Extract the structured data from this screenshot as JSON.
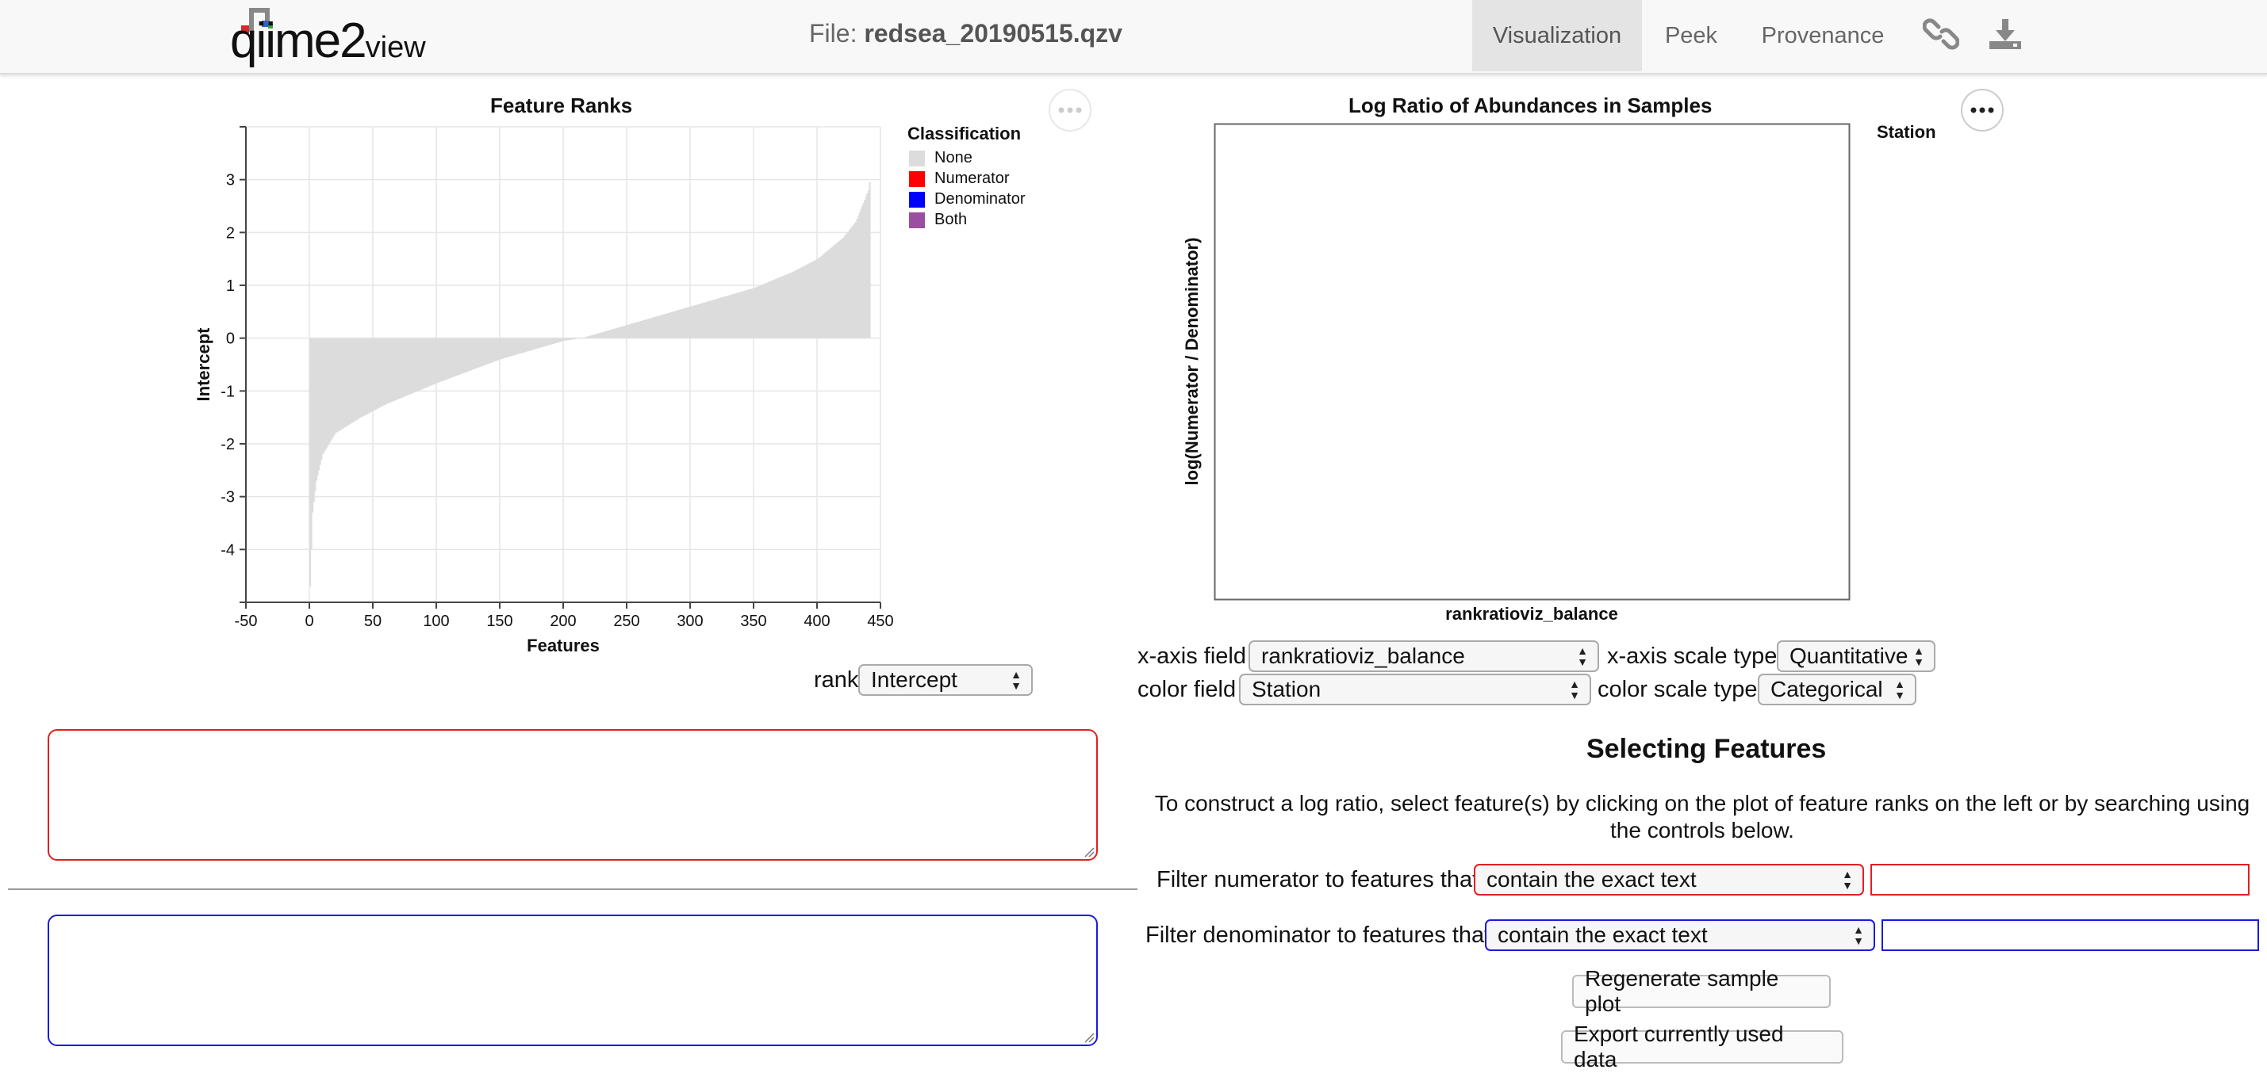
{
  "header": {
    "logo_text": "qiime2",
    "logo_suffix": "view",
    "file_label": "File:",
    "file_name": "redsea_20190515.qzv",
    "nav": [
      "Visualization",
      "Peek",
      "Provenance"
    ],
    "icons": [
      "link-icon",
      "download-icon"
    ]
  },
  "rank_chart": {
    "title": "Feature Ranks",
    "xlabel": "Features",
    "ylabel": "Intercept",
    "x_ticks": [
      "-50",
      "0",
      "50",
      "100",
      "150",
      "200",
      "250",
      "300",
      "350",
      "400",
      "450"
    ],
    "y_ticks": [
      "3",
      "2",
      "1",
      "0",
      "-1",
      "-2",
      "-3",
      "-4"
    ],
    "legend_title": "Classification",
    "legend": [
      {
        "label": "None",
        "color": "#dcdcdc"
      },
      {
        "label": "Numerator",
        "color": "#ff0000"
      },
      {
        "label": "Denominator",
        "color": "#0000ff"
      },
      {
        "label": "Both",
        "color": "#9b4ea0"
      }
    ]
  },
  "chart_data": [
    {
      "type": "bar",
      "title": "Feature Ranks",
      "xlabel": "Features",
      "ylabel": "Intercept",
      "xlim": [
        -50,
        450
      ],
      "ylim": [
        -5,
        4
      ],
      "n_features": 442,
      "curve_x": [
        0,
        2,
        5,
        10,
        20,
        40,
        60,
        100,
        150,
        200,
        214,
        250,
        300,
        350,
        380,
        400,
        420,
        430,
        440,
        442
      ],
      "curve_y": [
        -4.7,
        -3.3,
        -2.7,
        -2.2,
        -1.8,
        -1.5,
        -1.25,
        -0.85,
        -0.4,
        -0.05,
        0.0,
        0.25,
        0.6,
        0.95,
        1.25,
        1.5,
        1.9,
        2.2,
        2.8,
        3.1
      ],
      "legend_title": "Classification",
      "legend": [
        "None",
        "Numerator",
        "Denominator",
        "Both"
      ]
    },
    {
      "type": "scatter",
      "title": "Log Ratio of Abundances in Samples",
      "xlabel": "rankratioviz_balance",
      "ylabel": "log(Numerator / Denominator)",
      "legend_title": "Station",
      "points": []
    }
  ],
  "sample_chart": {
    "title": "Log Ratio of Abundances in Samples",
    "xlabel": "rankratioviz_balance",
    "ylabel": "log(Numerator / Denominator)",
    "legend_title": "Station"
  },
  "rank_control": {
    "label": "rank",
    "value": "Intercept"
  },
  "sample_controls": {
    "x_field_label": "x-axis field",
    "x_field_value": "rankratioviz_balance",
    "x_scale_label": "x-axis scale type",
    "x_scale_value": "Quantitative",
    "color_field_label": "color field",
    "color_field_value": "Station",
    "color_scale_label": "color scale type",
    "color_scale_value": "Categorical"
  },
  "selecting": {
    "title": "Selecting Features",
    "description": "To construct a log ratio, select feature(s) by clicking on the plot of feature ranks on the left or by searching using the controls below.",
    "numerator_label": "Filter numerator to features that",
    "numerator_option": "contain the exact text",
    "numerator_text": "",
    "denominator_label": "Filter denominator to features that",
    "denominator_option": "contain the exact text",
    "denominator_text": "",
    "regenerate_button": "Regenerate sample plot",
    "export_button": "Export currently used data"
  }
}
